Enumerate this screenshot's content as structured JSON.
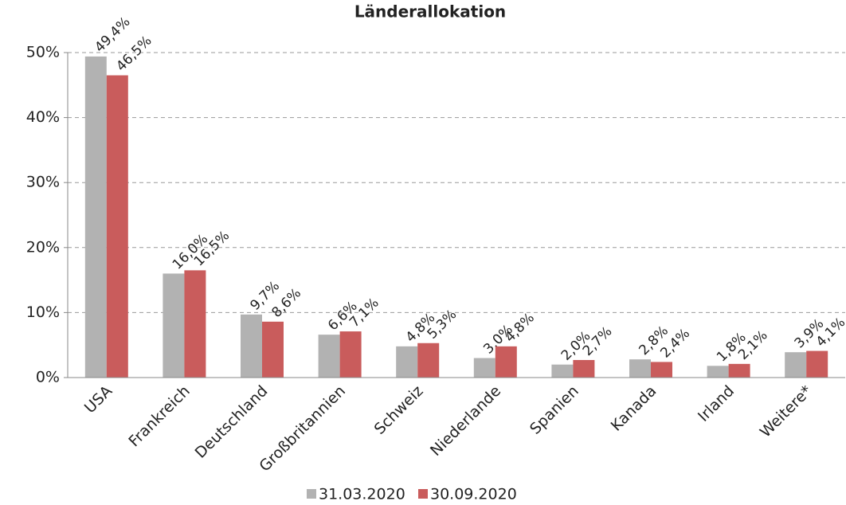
{
  "chart_data": {
    "type": "bar",
    "title": "Länderallokation",
    "categories": [
      "USA",
      "Frankreich",
      "Deutschland",
      "Großbritannien",
      "Schweiz",
      "Niederlande",
      "Spanien",
      "Kanada",
      "Irland",
      "Weitere*"
    ],
    "series": [
      {
        "name": "31.03.2020",
        "color": "#b2b2b2",
        "values": [
          49.4,
          16.0,
          9.7,
          6.6,
          4.8,
          3.0,
          2.0,
          2.8,
          1.8,
          3.9
        ],
        "value_labels": [
          "49,4%",
          "16,0%",
          "9,7%",
          "6,6%",
          "4,8%",
          "3,0%",
          "2,0%",
          "2,8%",
          "1,8%",
          "3,9%"
        ]
      },
      {
        "name": "30.09.2020",
        "color": "#c95c5c",
        "values": [
          46.5,
          16.5,
          8.6,
          7.1,
          5.3,
          4.8,
          2.7,
          2.4,
          2.1,
          4.1
        ],
        "value_labels": [
          "46,5%",
          "16,5%",
          "8,6%",
          "7,1%",
          "5,3%",
          "4,8%",
          "2,7%",
          "2,4%",
          "2,1%",
          "4,1%"
        ]
      }
    ],
    "ylim": [
      0,
      50
    ],
    "yticks": [
      {
        "value": 0,
        "label": "0%"
      },
      {
        "value": 10,
        "label": "10%"
      },
      {
        "value": 20,
        "label": "20%"
      },
      {
        "value": 30,
        "label": "30%"
      },
      {
        "value": 40,
        "label": "40%"
      },
      {
        "value": 50,
        "label": "50%"
      }
    ],
    "grid": true,
    "legend": "bottom"
  }
}
